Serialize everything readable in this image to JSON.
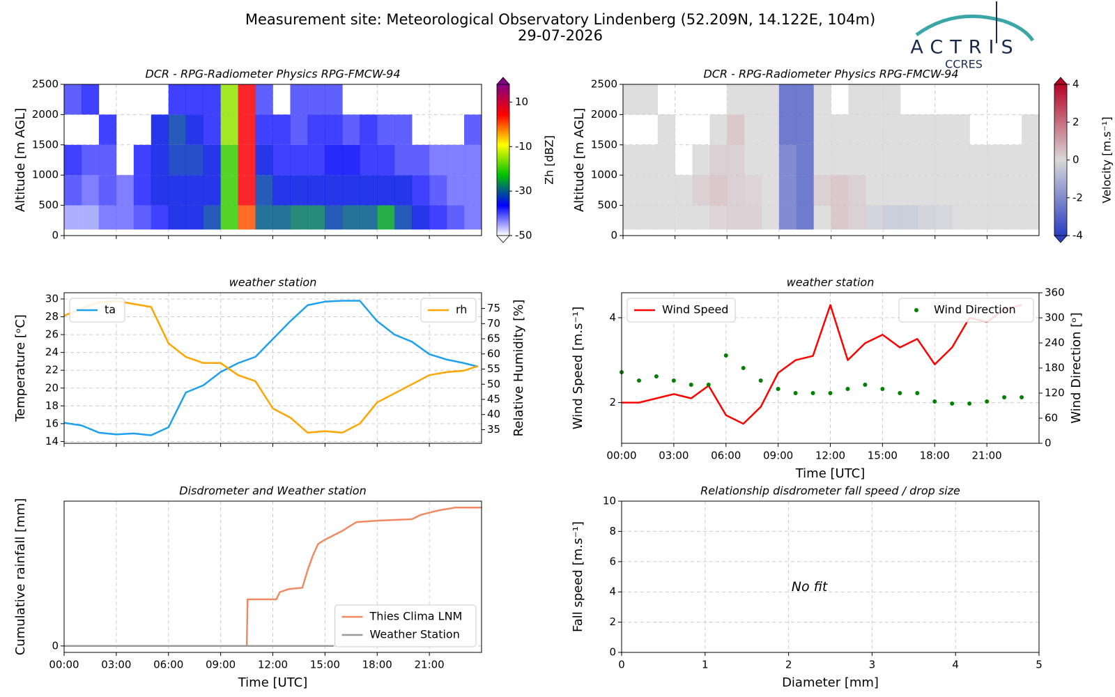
{
  "title": "Measurement site: Meteorological Observatory Lindenberg (52.209N, 14.122E, 104m)",
  "subtitle": "29-07-2026",
  "logo": {
    "name": "ACTRIS",
    "subname": "CCRES"
  },
  "chart_data": [
    {
      "type": "heatmap",
      "title": "DCR - RPG-Radiometer Physics RPG-FMCW-94",
      "ylabel": "Altitude [m AGL]",
      "xbins": [
        0,
        1,
        2,
        3,
        4,
        5,
        6,
        7,
        8,
        9,
        10,
        11,
        12,
        13,
        14,
        15,
        16,
        17,
        18,
        19,
        20,
        21,
        22,
        23,
        24
      ],
      "ybins": [
        100,
        500,
        1000,
        1500,
        2000,
        2500
      ],
      "values": [
        [
          -45,
          -45,
          -42,
          -42,
          -40,
          -38,
          -35,
          -35,
          -32,
          -20,
          0,
          -30,
          -30,
          -28,
          -28,
          -32,
          -30,
          -30,
          -25,
          -32,
          -35,
          -38,
          -40,
          -42
        ],
        [
          -40,
          -42,
          -40,
          -42,
          -38,
          -35,
          -35,
          -35,
          -35,
          -20,
          5,
          -32,
          -35,
          -35,
          -35,
          -35,
          -35,
          -35,
          -35,
          -35,
          -38,
          -40,
          -42,
          -42
        ],
        [
          -38,
          -40,
          -40,
          null,
          -38,
          -35,
          -33,
          -33,
          -35,
          -20,
          5,
          -35,
          -38,
          -38,
          -38,
          -36,
          -36,
          -38,
          -38,
          -40,
          -40,
          -42,
          -42,
          -42
        ],
        [
          null,
          null,
          -38,
          null,
          null,
          -35,
          -32,
          -35,
          -38,
          -15,
          5,
          -38,
          -38,
          -40,
          -38,
          -38,
          -40,
          -38,
          -40,
          -40,
          null,
          null,
          null,
          -40
        ],
        [
          -40,
          -38,
          null,
          null,
          null,
          null,
          -38,
          -38,
          -38,
          -15,
          5,
          -40,
          null,
          -40,
          -40,
          -40,
          null,
          null,
          null,
          null,
          null,
          null,
          null,
          null
        ]
      ],
      "xlim": [
        0,
        24
      ],
      "ylim": [
        0,
        2500
      ],
      "yticks": [
        0,
        500,
        1000,
        1500,
        2000,
        2500
      ],
      "xticks": [
        0,
        3,
        6,
        9,
        12,
        15,
        18,
        21
      ],
      "xtick_labels": false,
      "grid": true,
      "colorbar": {
        "label": "Zh [dBZ]",
        "lim": [
          -50,
          18
        ],
        "ticks": [
          -50,
          -30,
          -10,
          10
        ],
        "colors": [
          "#ffffff",
          "#0000ff",
          "#00c000",
          "#ffff00",
          "#ff0000",
          "#800080"
        ]
      }
    },
    {
      "type": "heatmap",
      "title": "DCR - RPG-Radiometer Physics RPG-FMCW-94",
      "ylabel": "Altitude [m AGL]",
      "xbins": [
        0,
        1,
        2,
        3,
        4,
        5,
        6,
        7,
        8,
        9,
        10,
        11,
        12,
        13,
        14,
        15,
        16,
        17,
        18,
        19,
        20,
        21,
        22,
        23,
        24
      ],
      "ybins": [
        100,
        500,
        1000,
        1500,
        2000,
        2500
      ],
      "values": [
        [
          0,
          0,
          0,
          0,
          0,
          0.2,
          0.3,
          0.3,
          0,
          -2.5,
          -3,
          0,
          0.5,
          0.3,
          -0.3,
          -0.5,
          -0.5,
          -0.3,
          -0.2,
          0,
          0,
          0,
          0,
          0
        ],
        [
          0,
          0,
          0,
          0,
          0.3,
          0.5,
          0.3,
          0.2,
          0,
          -2.5,
          -3,
          0.3,
          0.5,
          0.3,
          0,
          0,
          0,
          0,
          0,
          0,
          0,
          0,
          0,
          0
        ],
        [
          0,
          0,
          0,
          null,
          0,
          0.3,
          0.3,
          0,
          0,
          -2.5,
          -3,
          0,
          0,
          0,
          0,
          0,
          0,
          0,
          0,
          0,
          0,
          0,
          0,
          0
        ],
        [
          null,
          null,
          0,
          null,
          null,
          0,
          0.5,
          0,
          0,
          -3,
          -3,
          0,
          0,
          0,
          0,
          0,
          0,
          0,
          0,
          0,
          null,
          null,
          null,
          0
        ],
        [
          0,
          0,
          null,
          null,
          null,
          null,
          0,
          0,
          0,
          -3,
          -3,
          0,
          null,
          0,
          0,
          0,
          null,
          null,
          null,
          null,
          null,
          null,
          null,
          null
        ]
      ],
      "xlim": [
        0,
        24
      ],
      "ylim": [
        0,
        2500
      ],
      "yticks": [
        0,
        500,
        1000,
        1500,
        2000,
        2500
      ],
      "xticks": [
        0,
        3,
        6,
        9,
        12,
        15,
        18,
        21
      ],
      "xtick_labels": false,
      "grid": true,
      "colorbar": {
        "label": "Velocity [m.s⁻¹]",
        "lim": [
          -4,
          4
        ],
        "ticks": [
          -4,
          -2,
          0,
          2,
          4
        ],
        "colors": [
          "#2b3fbf",
          "#d8d8d8",
          "#b40426"
        ]
      }
    },
    {
      "type": "line",
      "title": "weather station",
      "ylabel": "Temperature [ᵒC]",
      "y2label": "Relative Humidity [%]",
      "x": [
        0,
        1,
        2,
        3,
        4,
        5,
        6,
        7,
        8,
        9,
        10,
        11,
        12,
        13,
        14,
        15,
        16,
        17,
        18,
        19,
        20,
        21,
        22,
        23,
        23.8
      ],
      "xlim": [
        0,
        24
      ],
      "ylim": [
        13.8,
        30.7
      ],
      "yticks": [
        14,
        16,
        18,
        20,
        22,
        24,
        26,
        28,
        30
      ],
      "y2lim": [
        30.5,
        80.2
      ],
      "y2ticks": [
        35,
        40,
        45,
        50,
        55,
        60,
        65,
        70,
        75
      ],
      "xticks": [
        0,
        3,
        6,
        9,
        12,
        15,
        18,
        21
      ],
      "xtick_labels": false,
      "grid": true,
      "series": [
        {
          "name": "ta",
          "color": "#1ea0ec",
          "legend": "upper left",
          "values": [
            16.1,
            15.8,
            15.0,
            14.8,
            14.9,
            14.7,
            15.6,
            19.5,
            20.3,
            21.8,
            22.8,
            23.5,
            25.5,
            27.5,
            29.3,
            29.7,
            29.8,
            29.8,
            27.5,
            26.0,
            25.2,
            23.8,
            23.2,
            22.8,
            22.4
          ]
        },
        {
          "name": "rh",
          "color": "#ffa500",
          "axis": "y2",
          "legend": "upper right",
          "values": [
            72.6,
            75,
            77,
            77.5,
            76.5,
            75.5,
            63.5,
            59,
            57,
            57,
            53,
            51,
            42,
            39,
            34,
            34.5,
            34,
            37,
            44,
            47,
            50,
            53,
            54,
            54.5,
            56
          ]
        }
      ]
    },
    {
      "type": "line",
      "title": "weather station",
      "ylabel": "Wind Speed [m.s⁻¹]",
      "y2label": "Wind Direction [ᵒ]",
      "xlabel": "Time [UTC]",
      "x": [
        0,
        1,
        2,
        3,
        4,
        5,
        6,
        7,
        8,
        9,
        10,
        11,
        12,
        13,
        14,
        15,
        16,
        17,
        18,
        19,
        20,
        21,
        22,
        23
      ],
      "xlim": [
        0,
        24
      ],
      "ylim": [
        1.04,
        4.59
      ],
      "yticks": [
        2,
        4
      ],
      "y2lim": [
        0,
        360
      ],
      "y2ticks": [
        0,
        60,
        120,
        180,
        240,
        300,
        360
      ],
      "xticks": [
        {
          "value": 0,
          "label": "00:00"
        },
        {
          "value": 3,
          "label": "03:00"
        },
        {
          "value": 6,
          "label": "06:00"
        },
        {
          "value": 9,
          "label": "09:00"
        },
        {
          "value": 12,
          "label": "12:00"
        },
        {
          "value": 15,
          "label": "15:00"
        },
        {
          "value": 18,
          "label": "18:00"
        },
        {
          "value": 21,
          "label": "21:00"
        }
      ],
      "grid": true,
      "series": [
        {
          "name": "Wind Speed",
          "color": "#ff0000",
          "legend": "upper left",
          "values": [
            2.0,
            2.0,
            2.1,
            2.2,
            2.1,
            2.4,
            1.7,
            1.5,
            1.9,
            2.7,
            3.0,
            3.1,
            4.3,
            3.0,
            3.4,
            3.6,
            3.3,
            3.5,
            2.9,
            3.3,
            4.0,
            3.9,
            4.2,
            4.3
          ]
        },
        {
          "name": "Wind Direction",
          "color": "#008000",
          "axis": "y2",
          "type": "scatter",
          "legend": "upper right",
          "values": [
            170,
            150,
            160,
            150,
            140,
            140,
            210,
            180,
            150,
            130,
            120,
            120,
            120,
            130,
            140,
            130,
            120,
            120,
            100,
            95,
            95,
            100,
            110,
            110
          ]
        }
      ]
    },
    {
      "type": "line",
      "title": "Disdrometer and Weather station",
      "ylabel": "Cumulative rainfall [mm]",
      "xlabel": "Time [UTC]",
      "xlim": [
        0,
        24
      ],
      "ylim": [
        -0.44,
        9.94
      ],
      "yticks": [
        0
      ],
      "xticks": [
        {
          "value": 0,
          "label": "00:00"
        },
        {
          "value": 3,
          "label": "03:00"
        },
        {
          "value": 6,
          "label": "06:00"
        },
        {
          "value": 9,
          "label": "09:00"
        },
        {
          "value": 12,
          "label": "12:00"
        },
        {
          "value": 15,
          "label": "15:00"
        },
        {
          "value": 18,
          "label": "18:00"
        },
        {
          "value": 21,
          "label": "21:00"
        }
      ],
      "grid": true,
      "legend": "lower right",
      "series": [
        {
          "name": "Thies Clima LNM",
          "color": "#ef8a62",
          "x": [
            0,
            10.5,
            10.55,
            12.2,
            12.4,
            12.9,
            13.7,
            14.0,
            14.3,
            14.6,
            15.0,
            16.0,
            16.8,
            18,
            20,
            20.5,
            21.5,
            22.5,
            24
          ],
          "values": [
            0,
            0,
            3.2,
            3.2,
            3.7,
            3.9,
            4.0,
            5.2,
            6.2,
            7.0,
            7.3,
            7.9,
            8.5,
            8.6,
            8.7,
            9.0,
            9.3,
            9.5,
            9.5
          ]
        },
        {
          "name": "Weather Station",
          "color": "#999999",
          "x": [
            0,
            15.5
          ],
          "values": [
            0,
            0
          ]
        }
      ]
    },
    {
      "type": "scatter",
      "title": "Relationship disdrometer fall speed / drop size",
      "ylabel": "Fall speed [m.s⁻¹]",
      "xlabel": "Diameter [mm]",
      "xlim": [
        0,
        5
      ],
      "ylim": [
        0,
        10
      ],
      "xticks": [
        0,
        1,
        2,
        3,
        4,
        5
      ],
      "yticks": [
        0,
        2,
        4,
        6,
        8,
        10
      ],
      "grid": true,
      "annotation": "No fit"
    }
  ]
}
